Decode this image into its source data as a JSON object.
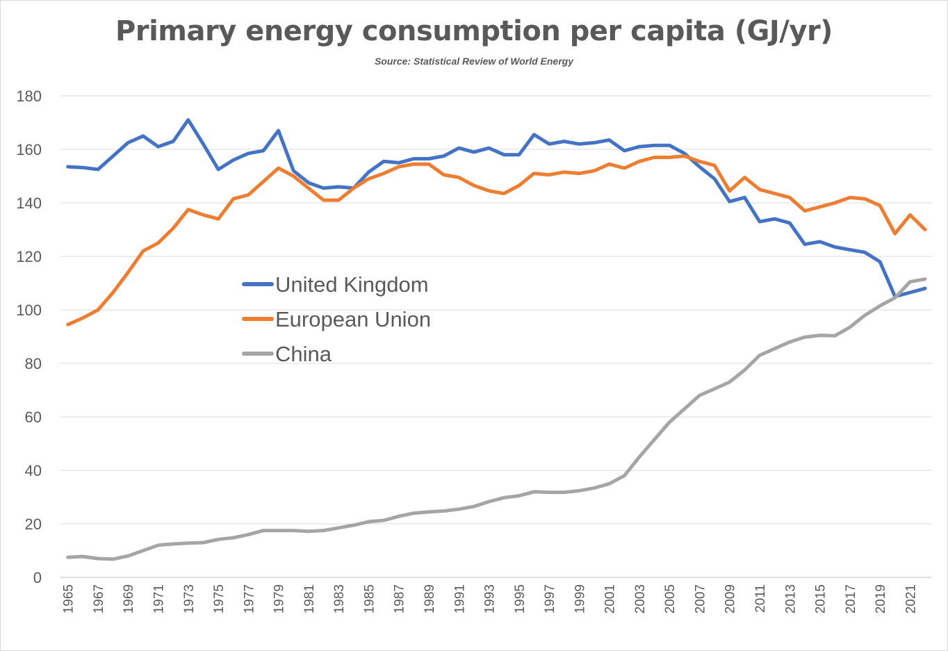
{
  "chart_data": {
    "type": "line",
    "title": "Primary energy consumption per capita (GJ/yr)",
    "subtitle": "Source: Statistical Review of World Energy",
    "xlabel": "",
    "ylabel": "",
    "ylim": [
      0,
      180
    ],
    "y_ticks": [
      "0",
      "20",
      "40",
      "60",
      "80",
      "100",
      "120",
      "140",
      "160",
      "180"
    ],
    "x_tick_labels": [
      "1965",
      "1967",
      "1969",
      "1971",
      "1973",
      "1975",
      "1977",
      "1979",
      "1981",
      "1983",
      "1985",
      "1987",
      "1989",
      "1991",
      "1993",
      "1995",
      "1997",
      "1999",
      "2001",
      "2003",
      "2005",
      "2007",
      "2009",
      "2011",
      "2013",
      "2015",
      "2017",
      "2019",
      "2021"
    ],
    "grid": true,
    "legend_position": "center-left",
    "x": [
      1965,
      1966,
      1967,
      1968,
      1969,
      1970,
      1971,
      1972,
      1973,
      1974,
      1975,
      1976,
      1977,
      1978,
      1979,
      1980,
      1981,
      1982,
      1983,
      1984,
      1985,
      1986,
      1987,
      1988,
      1989,
      1990,
      1991,
      1992,
      1993,
      1994,
      1995,
      1996,
      1997,
      1998,
      1999,
      2000,
      2001,
      2002,
      2003,
      2004,
      2005,
      2006,
      2007,
      2008,
      2009,
      2010,
      2011,
      2012,
      2013,
      2014,
      2015,
      2016,
      2017,
      2018,
      2019,
      2020,
      2021,
      2022
    ],
    "series": [
      {
        "name": "United Kingdom",
        "color": "#4472c4",
        "values": [
          153.5,
          153.2,
          152.5,
          157.5,
          162.5,
          165.0,
          161.0,
          163.0,
          171.0,
          162.0,
          152.5,
          156.0,
          158.5,
          159.5,
          167.0,
          152.0,
          147.5,
          145.5,
          146.0,
          145.5,
          151.5,
          155.5,
          155.0,
          156.5,
          156.5,
          157.5,
          160.5,
          159.0,
          160.5,
          158.0,
          158.0,
          165.5,
          162.0,
          163.0,
          162.0,
          162.5,
          163.5,
          159.5,
          161.0,
          161.5,
          161.5,
          158.5,
          153.5,
          149.0,
          140.5,
          142.0,
          133.0,
          134.0,
          132.5,
          124.5,
          125.5,
          123.5,
          122.5,
          121.5,
          118.0,
          105.0,
          106.5,
          108.0
        ]
      },
      {
        "name": "European Union",
        "color": "#ed7d31",
        "values": [
          94.5,
          97.0,
          100.0,
          106.5,
          114.0,
          122.0,
          125.0,
          130.5,
          137.5,
          135.5,
          134.0,
          141.5,
          143.0,
          148.0,
          153.0,
          150.0,
          145.5,
          141.0,
          141.0,
          145.5,
          149.0,
          151.0,
          153.5,
          154.5,
          154.5,
          150.5,
          149.5,
          146.5,
          144.5,
          143.5,
          146.5,
          151.0,
          150.5,
          151.5,
          151.0,
          152.0,
          154.5,
          153.0,
          155.5,
          157.0,
          157.0,
          157.5,
          155.5,
          154.0,
          144.5,
          149.5,
          145.0,
          143.5,
          142.0,
          137.0,
          138.5,
          140.0,
          142.0,
          141.5,
          139.0,
          128.5,
          135.5,
          130.0
        ]
      },
      {
        "name": "China",
        "color": "#a5a5a5",
        "values": [
          7.5,
          7.8,
          7.0,
          6.8,
          8.0,
          10.0,
          12.0,
          12.5,
          12.8,
          13.0,
          14.2,
          14.8,
          16.0,
          17.5,
          17.5,
          17.5,
          17.2,
          17.5,
          18.5,
          19.5,
          20.8,
          21.3,
          22.8,
          24.0,
          24.5,
          24.8,
          25.5,
          26.5,
          28.3,
          29.8,
          30.5,
          32.0,
          31.8,
          31.8,
          32.4,
          33.4,
          35.0,
          38.0,
          45.0,
          51.5,
          58.0,
          63.0,
          68.0,
          70.5,
          73.0,
          77.5,
          83.0,
          85.5,
          88.0,
          89.8,
          90.5,
          90.3,
          93.5,
          98.0,
          101.5,
          104.5,
          110.5,
          111.5
        ]
      }
    ]
  }
}
